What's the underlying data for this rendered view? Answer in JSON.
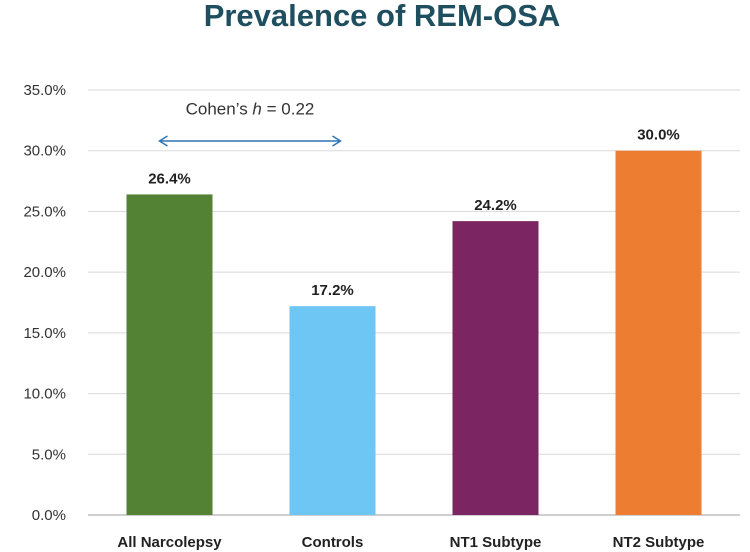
{
  "chart_data": {
    "type": "bar",
    "title": "Prevalence of REM-OSA",
    "xlabel": "",
    "ylabel": "",
    "categories": [
      "All Narcolepsy",
      "Controls",
      "NT1 Subtype",
      "NT2 Subtype"
    ],
    "values": [
      26.4,
      17.2,
      24.2,
      30.0
    ],
    "data_labels": [
      "26.4%",
      "17.2%",
      "24.2%",
      "30.0%"
    ],
    "colors": [
      "#548235",
      "#6ec6f5",
      "#7b2563",
      "#ed7d31"
    ],
    "ylim": [
      0,
      35
    ],
    "yticks": [
      0,
      5,
      10,
      15,
      20,
      25,
      30,
      35
    ],
    "ytick_labels": [
      "0.0%",
      "5.0%",
      "10.0%",
      "15.0%",
      "20.0%",
      "25.0%",
      "30.0%",
      "35.0%"
    ],
    "grid": true,
    "annotation": {
      "prefix": "Cohen’s ",
      "symbol": "h",
      "suffix": " = 0.22",
      "arrow_from_category": 0,
      "arrow_to_category": 1
    },
    "axis_color": "#bfbfbf",
    "grid_color": "#d9d9d9",
    "arrow_color": "#2e75b6"
  }
}
